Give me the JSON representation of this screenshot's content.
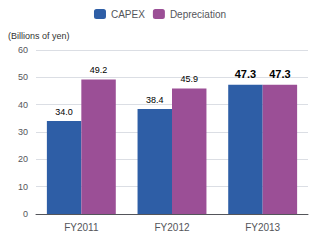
{
  "chart_data": {
    "type": "bar",
    "ylabel": "(Billions of yen)",
    "categories": [
      "FY2011",
      "FY2012",
      "FY2013"
    ],
    "series": [
      {
        "name": "CAPEX",
        "color": "#2e5ea6",
        "values": [
          34.0,
          38.4,
          47.3
        ],
        "value_labels": [
          "34.0",
          "38.4",
          "47.3"
        ]
      },
      {
        "name": "Depreciation",
        "color": "#9b4f96",
        "values": [
          49.2,
          45.9,
          47.3
        ],
        "value_labels": [
          "49.2",
          "45.9",
          "47.3"
        ]
      }
    ],
    "ylim": [
      0,
      60
    ],
    "yticks": [
      0,
      10,
      20,
      30,
      40,
      50,
      60
    ],
    "grid": true,
    "legend": "top",
    "data_labels": true
  }
}
